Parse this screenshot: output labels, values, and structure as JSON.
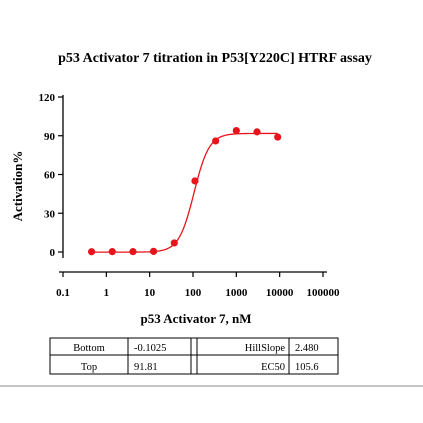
{
  "chart_data": {
    "type": "scatter",
    "title": "p53 Activator 7 titration in P53[Y220C] HTRF assay",
    "xlabel": "p53 Activator 7, nM",
    "ylabel": "Activation%",
    "x_scale": "log",
    "xlim": [
      0.1,
      100000
    ],
    "ylim": [
      0,
      120
    ],
    "x_ticks": [
      "0.1",
      "1",
      "10",
      "100",
      "1000",
      "10000",
      "100000"
    ],
    "y_ticks": [
      "0",
      "30",
      "60",
      "90",
      "120"
    ],
    "series": [
      {
        "x": [
          0.457,
          1.37,
          4.12,
          12.3,
          37,
          111,
          333,
          1000,
          3000,
          9000
        ],
        "y": [
          0.2,
          0.3,
          0.3,
          0.5,
          7,
          55,
          86,
          94,
          93,
          89
        ]
      }
    ],
    "fit": {
      "model": "4PL",
      "color": "#e8141c",
      "params_table": [
        [
          "Bottom",
          "-0.1025",
          "HillSlope",
          "2.480"
        ],
        [
          "Top",
          "91.81",
          "EC50",
          "105.6"
        ]
      ]
    }
  }
}
